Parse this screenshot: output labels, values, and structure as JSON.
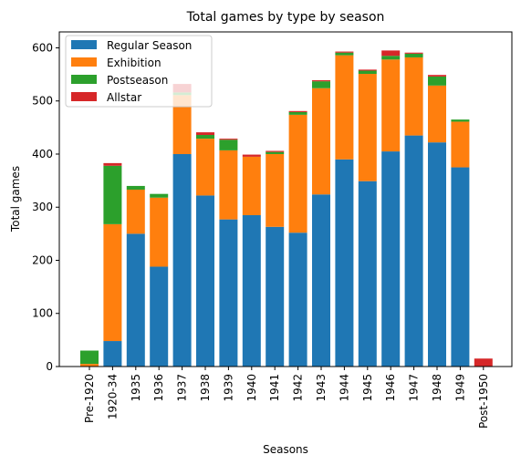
{
  "chart_data": {
    "type": "bar",
    "stacked": true,
    "title": "Total games by type by season",
    "xlabel": "Seasons",
    "ylabel": "Total games",
    "ylim": [
      0,
      630
    ],
    "yticks": [
      0,
      100,
      200,
      300,
      400,
      500,
      600
    ],
    "grid": false,
    "legend_position": "top-left",
    "categories": [
      "Pre-1920",
      "1920-34",
      "1935",
      "1936",
      "1937",
      "1938",
      "1939",
      "1940",
      "1941",
      "1942",
      "1943",
      "1944",
      "1945",
      "1946",
      "1947",
      "1948",
      "1949",
      "Post-1950"
    ],
    "series": [
      {
        "name": "Regular Season",
        "color": "#1f77b4",
        "values": [
          0,
          48,
          250,
          188,
          400,
          322,
          277,
          285,
          263,
          252,
          324,
          390,
          349,
          405,
          435,
          422,
          375,
          0
        ]
      },
      {
        "name": "Exhibition",
        "color": "#ff7f0e",
        "values": [
          5,
          220,
          83,
          130,
          111,
          107,
          130,
          110,
          137,
          222,
          200,
          196,
          202,
          173,
          147,
          107,
          86,
          0
        ]
      },
      {
        "name": "Postseason",
        "color": "#2ca02c",
        "values": [
          25,
          110,
          7,
          7,
          5,
          7,
          20,
          0,
          4,
          5,
          13,
          5,
          6,
          7,
          7,
          17,
          4,
          0
        ]
      },
      {
        "name": "Allstar",
        "color": "#d62728",
        "values": [
          0,
          5,
          0,
          0,
          16,
          5,
          2,
          4,
          2,
          2,
          2,
          2,
          2,
          10,
          2,
          3,
          0,
          15
        ]
      }
    ]
  }
}
